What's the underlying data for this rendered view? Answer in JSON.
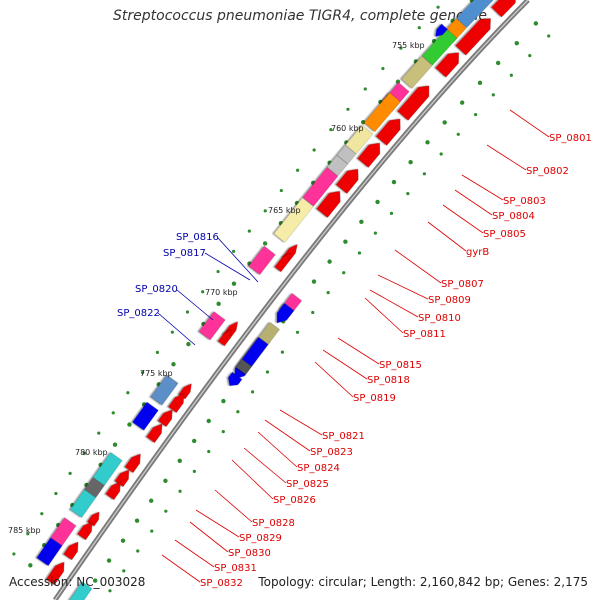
{
  "title": "Streptococcus pneumoniae TIGR4, complete genome",
  "footer": {
    "accession": "Accession: NC_003028",
    "summary": "Topology: circular; Length: 2,160,842 bp; Genes: 2,175"
  },
  "colors": {
    "backbone": "#808080",
    "tick": "#2e8b2e",
    "label_forward": "#dd0000",
    "label_reverse": "#0000aa",
    "leader_forward": "#dd0000",
    "leader_reverse": "#0000aa"
  },
  "scale_labels": [
    "755 kbp",
    "760 kbp",
    "765 kbp",
    "770 kbp",
    "775 kbp",
    "780 kbp",
    "785 kbp"
  ],
  "forward_gene_labels": [
    "SP_0801",
    "SP_0802",
    "SP_0803",
    "SP_0804",
    "SP_0805",
    "gyrB",
    "SP_0807",
    "SP_0809",
    "SP_0810",
    "SP_0811",
    "SP_0815",
    "SP_0818",
    "SP_0819",
    "SP_0821",
    "SP_0823",
    "SP_0824",
    "SP_0825",
    "SP_0826",
    "SP_0828",
    "SP_0829",
    "SP_0830",
    "SP_0831",
    "SP_0832"
  ],
  "reverse_gene_labels": [
    "SP_0816",
    "SP_0817",
    "SP_0820",
    "SP_0822"
  ]
}
